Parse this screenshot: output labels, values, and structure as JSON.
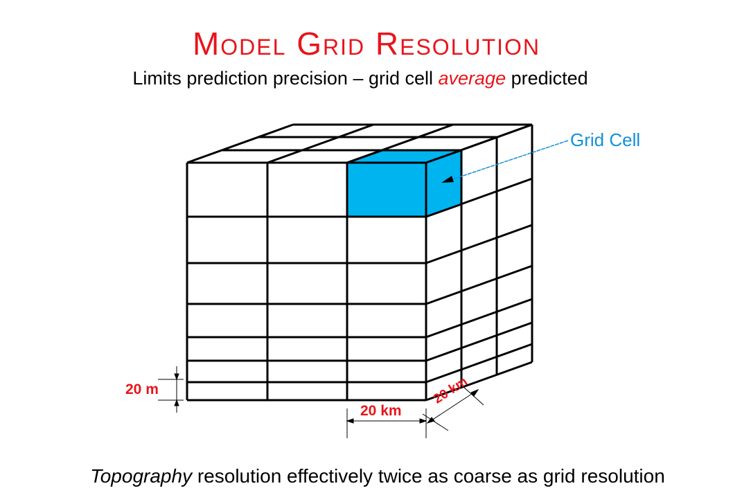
{
  "title": "Model Grid Resolution",
  "subtitle": {
    "before": "Limits prediction precision – grid cell ",
    "emphasis": "average",
    "after": " predicted"
  },
  "callout": "Grid Cell",
  "dimensions": {
    "height": "20 m",
    "width": "20 km",
    "depth": "20 km"
  },
  "footer": {
    "emphasis": "Topography",
    "rest": " resolution effectively twice as coarse as grid resolution"
  },
  "colors": {
    "title": "#e8141b",
    "highlight_cell": "#00b4f0",
    "callout": "#1290d8",
    "dimension_labels": "#e8141b"
  },
  "grid": {
    "columns": 3,
    "depth_cells": 3,
    "layers": 7
  }
}
